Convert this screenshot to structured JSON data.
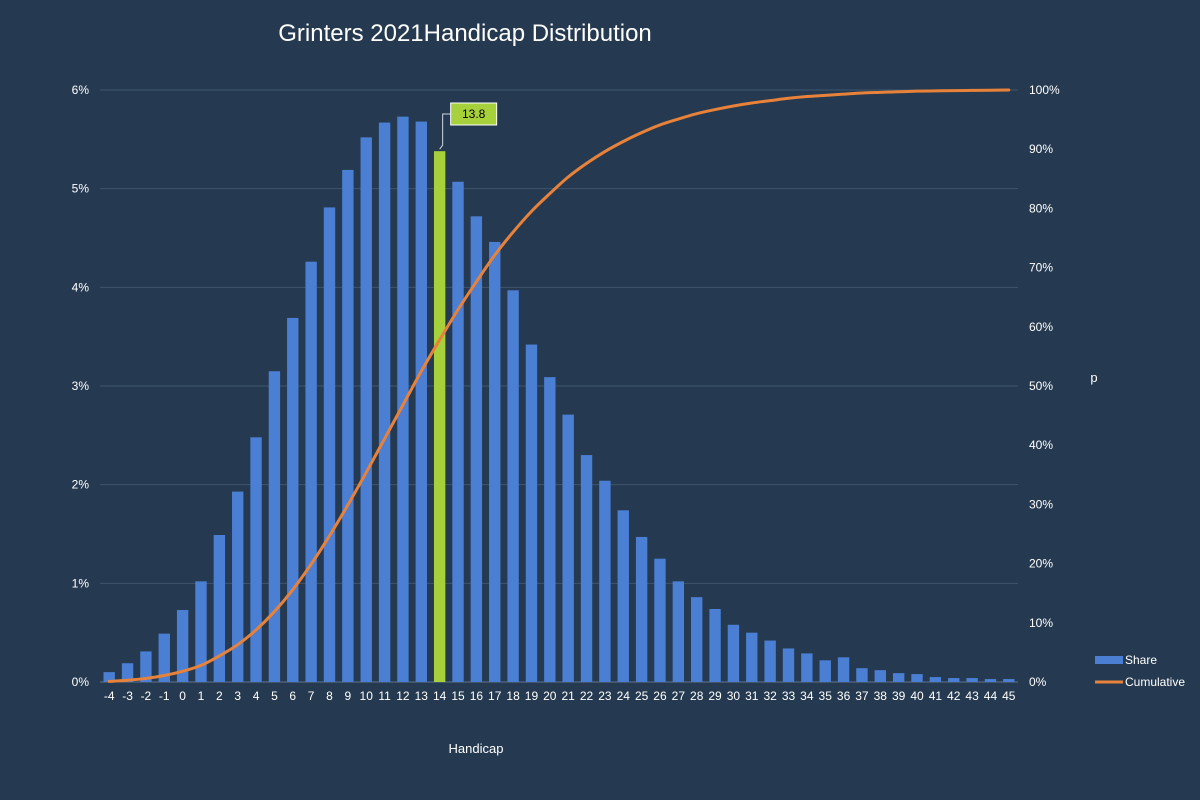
{
  "chart_data": {
    "type": "bar",
    "title": "Grinters 2021Handicap Distribution",
    "xlabel": "Handicap",
    "ylabel": "",
    "y2label": "p",
    "categories": [
      "-4",
      "-3",
      "-2",
      "-1",
      "0",
      "1",
      "2",
      "3",
      "4",
      "5",
      "6",
      "7",
      "8",
      "9",
      "10",
      "11",
      "12",
      "13",
      "14",
      "15",
      "16",
      "17",
      "18",
      "19",
      "20",
      "21",
      "22",
      "23",
      "24",
      "25",
      "26",
      "27",
      "28",
      "29",
      "30",
      "31",
      "32",
      "33",
      "34",
      "35",
      "36",
      "37",
      "38",
      "39",
      "40",
      "41",
      "42",
      "43",
      "44",
      "45"
    ],
    "ylim": [
      0,
      6
    ],
    "y_ticks": [
      0,
      1,
      2,
      3,
      4,
      5,
      6
    ],
    "y_tick_labels": [
      "0%",
      "1%",
      "2%",
      "3%",
      "4%",
      "5%",
      "6%"
    ],
    "y2lim": [
      0,
      100
    ],
    "y2_ticks": [
      0,
      10,
      20,
      30,
      40,
      50,
      60,
      70,
      80,
      90,
      100
    ],
    "y2_tick_labels": [
      "0%",
      "10%",
      "20%",
      "30%",
      "40%",
      "50%",
      "60%",
      "70%",
      "80%",
      "90%",
      "100%"
    ],
    "grid": true,
    "legend_position": "right",
    "series": [
      {
        "name": "Share",
        "kind": "bar",
        "axis": "left",
        "color": "#4a7fd4",
        "values": [
          0.1,
          0.19,
          0.31,
          0.49,
          0.73,
          1.02,
          1.49,
          1.93,
          2.48,
          3.15,
          3.69,
          4.26,
          4.81,
          5.19,
          5.52,
          5.67,
          5.73,
          5.68,
          5.38,
          5.07,
          4.72,
          4.46,
          3.97,
          3.42,
          3.09,
          2.71,
          2.3,
          2.04,
          1.74,
          1.47,
          1.25,
          1.02,
          0.86,
          0.74,
          0.58,
          0.5,
          0.42,
          0.34,
          0.29,
          0.22,
          0.25,
          0.14,
          0.12,
          0.09,
          0.08,
          0.05,
          0.04,
          0.04,
          0.03,
          0.03
        ]
      },
      {
        "name": "Cumulative",
        "kind": "line",
        "axis": "right",
        "color": "#e8823a",
        "values": [
          0.1,
          0.3,
          0.6,
          1.1,
          1.8,
          2.8,
          4.4,
          6.3,
          8.8,
          11.9,
          15.6,
          19.9,
          24.7,
          29.9,
          35.4,
          41.1,
          46.8,
          52.5,
          57.8,
          62.9,
          67.6,
          72.1,
          76.0,
          79.5,
          82.5,
          85.3,
          87.6,
          89.6,
          91.3,
          92.8,
          94.1,
          95.1,
          96.0,
          96.7,
          97.3,
          97.8,
          98.2,
          98.6,
          98.9,
          99.1,
          99.3,
          99.5,
          99.6,
          99.7,
          99.8,
          99.85,
          99.9,
          99.93,
          99.96,
          100.0
        ]
      }
    ],
    "highlight": {
      "category": "14",
      "color": "#a6d13a",
      "label": "13.8"
    }
  }
}
